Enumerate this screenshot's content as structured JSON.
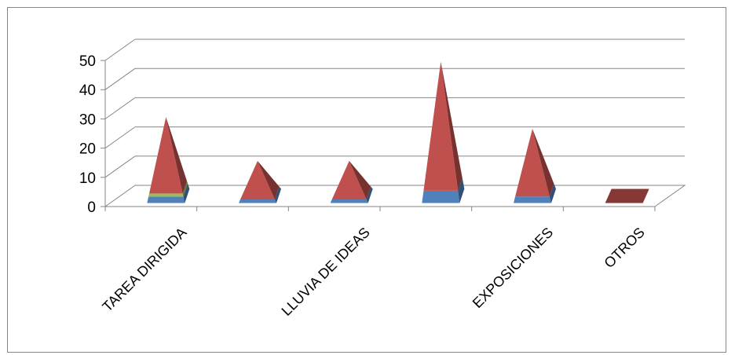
{
  "chart_data": {
    "type": "bar",
    "style": "3d-pyramid",
    "categories": [
      "TAREA DIRIGIDA",
      "",
      "LLUVIA DE IDEAS",
      "",
      "EXPOSICIONES",
      "OTROS"
    ],
    "series": [
      {
        "color": "#4f81bd",
        "values": [
          2,
          1,
          1,
          4,
          2,
          0
        ]
      },
      {
        "color": "#9bbb59",
        "values": [
          1,
          0,
          0,
          0,
          0,
          0
        ]
      },
      {
        "color": "#c0504d",
        "values": [
          24,
          11,
          11,
          42,
          21,
          0
        ]
      }
    ],
    "yticks": [
      0,
      10,
      20,
      30,
      40,
      50
    ],
    "ylim": [
      0,
      50
    ],
    "grid": true,
    "legend": "none"
  }
}
